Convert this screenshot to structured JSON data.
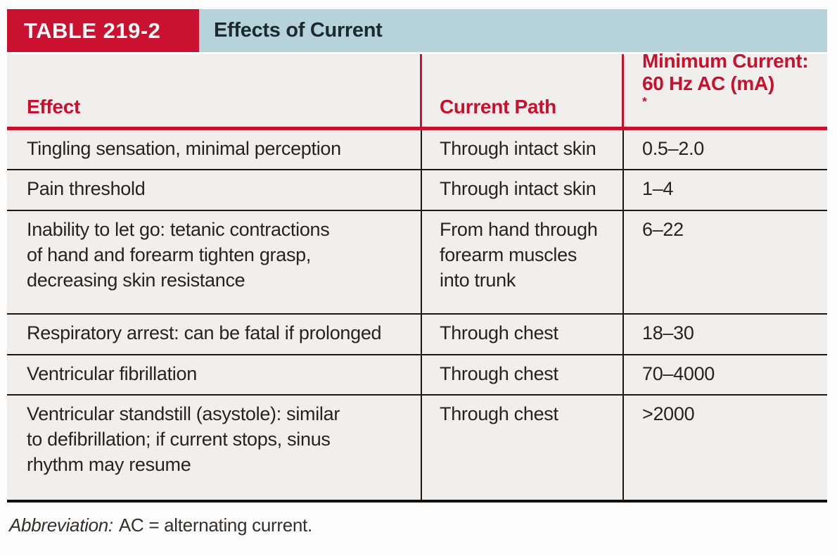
{
  "colors": {
    "accent_red": "#c9112e",
    "band_blue": "#b6d3da",
    "cell_bg": "#f0efed",
    "rule_black": "#1a1a1a",
    "text_dark": "#262324"
  },
  "table": {
    "tag": "TABLE 219-2",
    "title": "Effects of Current",
    "columns": [
      {
        "label": "Effect"
      },
      {
        "label": "Current Path"
      },
      {
        "label_line1": "Minimum Current:",
        "label_line2": "60 Hz AC (mA)",
        "footnote_marker": "*"
      }
    ],
    "rows": [
      {
        "effect": "Tingling sensation, minimal perception",
        "path": "Through intact skin",
        "current": "0.5–2.0"
      },
      {
        "effect": "Pain threshold",
        "path": "Through intact skin",
        "current": "1–4"
      },
      {
        "effect": "Inability to let go: tetanic contractions\nof hand and forearm tighten grasp,\ndecreasing skin resistance",
        "path": "From hand through\nforearm muscles\ninto trunk",
        "current": "6–22"
      },
      {
        "effect": "Respiratory arrest: can be fatal if prolonged",
        "path": "Through chest",
        "current": "18–30"
      },
      {
        "effect": "Ventricular fibrillation",
        "path": "Through chest",
        "current": "70–4000"
      },
      {
        "effect": "Ventricular standstill (asystole): similar\nto defibrillation; if current stops, sinus\nrhythm may resume",
        "path": "Through chest",
        "current": ">2000"
      }
    ],
    "footnote": {
      "label": "Abbreviation:",
      "text": "AC = alternating current."
    }
  }
}
